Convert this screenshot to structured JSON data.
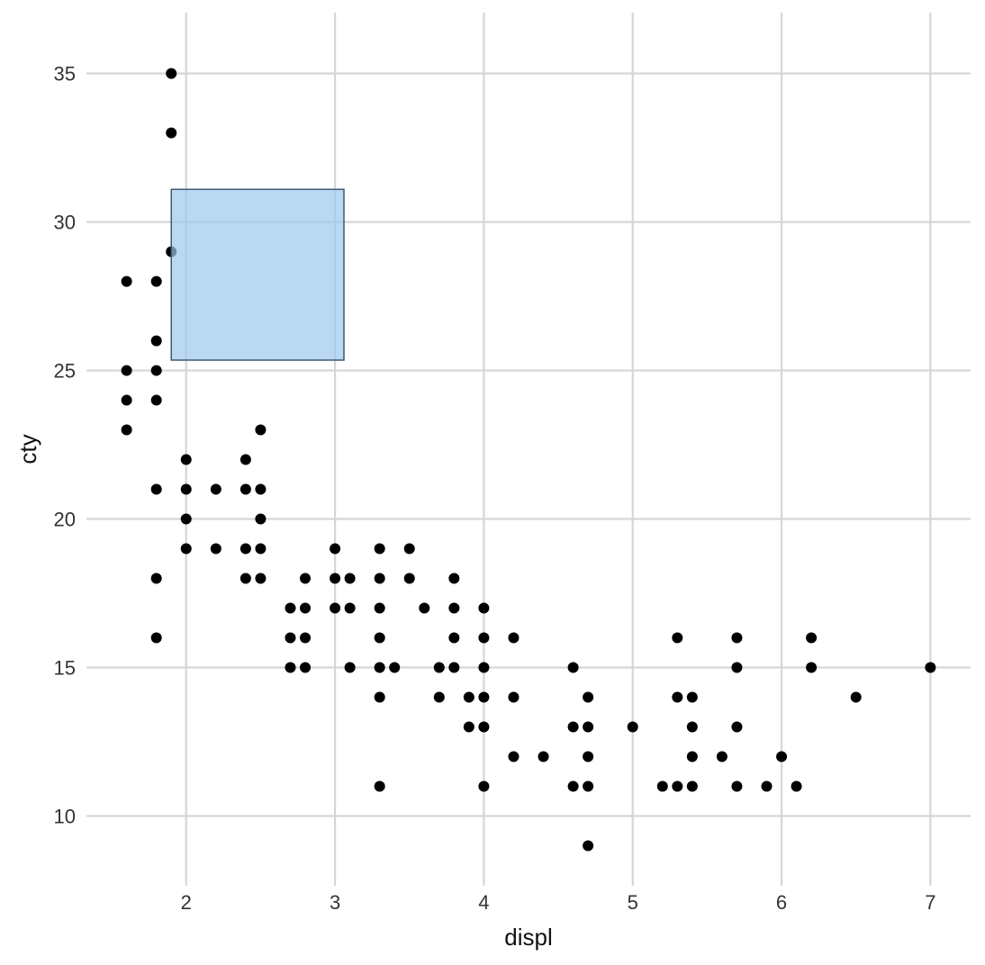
{
  "chart_data": {
    "type": "scatter",
    "xlabel": "displ",
    "ylabel": "cty",
    "xlim": [
      1.33,
      7.27
    ],
    "ylim": [
      7.65,
      37.05
    ],
    "x_ticks": [
      2,
      3,
      4,
      5,
      6,
      7
    ],
    "y_ticks": [
      10,
      15,
      20,
      25,
      30,
      35
    ],
    "grid": true,
    "brush_selection": {
      "x": [
        1.9,
        3.06
      ],
      "y": [
        25.35,
        31.1
      ]
    },
    "colors": {
      "points": "#000000",
      "grid": "#d6d6d6",
      "brush_fill": "#9ec8ec",
      "brush_stroke": "#3d5a78"
    },
    "points": [
      [
        1.9,
        35
      ],
      [
        1.9,
        33
      ],
      [
        1.9,
        29
      ],
      [
        1.6,
        28
      ],
      [
        1.8,
        28
      ],
      [
        1.8,
        26
      ],
      [
        1.6,
        25
      ],
      [
        1.8,
        25
      ],
      [
        1.6,
        24
      ],
      [
        1.8,
        24
      ],
      [
        1.6,
        23
      ],
      [
        2.5,
        23
      ],
      [
        2.0,
        22
      ],
      [
        2.4,
        22
      ],
      [
        1.8,
        21
      ],
      [
        2.0,
        21
      ],
      [
        2.2,
        21
      ],
      [
        2.4,
        21
      ],
      [
        2.5,
        21
      ],
      [
        2.0,
        20
      ],
      [
        2.5,
        20
      ],
      [
        2.0,
        19
      ],
      [
        2.2,
        19
      ],
      [
        2.4,
        19
      ],
      [
        2.5,
        19
      ],
      [
        3.0,
        19
      ],
      [
        3.3,
        19
      ],
      [
        3.5,
        19
      ],
      [
        1.8,
        18
      ],
      [
        2.4,
        18
      ],
      [
        2.5,
        18
      ],
      [
        2.8,
        18
      ],
      [
        3.0,
        18
      ],
      [
        3.1,
        18
      ],
      [
        3.3,
        18
      ],
      [
        3.5,
        18
      ],
      [
        3.8,
        18
      ],
      [
        2.7,
        17
      ],
      [
        2.8,
        17
      ],
      [
        3.0,
        17
      ],
      [
        3.1,
        17
      ],
      [
        3.3,
        17
      ],
      [
        3.6,
        17
      ],
      [
        3.8,
        17
      ],
      [
        4.0,
        17
      ],
      [
        1.8,
        16
      ],
      [
        2.7,
        16
      ],
      [
        2.8,
        16
      ],
      [
        3.3,
        16
      ],
      [
        3.8,
        16
      ],
      [
        4.0,
        16
      ],
      [
        4.2,
        16
      ],
      [
        5.3,
        16
      ],
      [
        5.7,
        16
      ],
      [
        6.2,
        16
      ],
      [
        2.7,
        15
      ],
      [
        2.8,
        15
      ],
      [
        3.1,
        15
      ],
      [
        3.3,
        15
      ],
      [
        3.4,
        15
      ],
      [
        3.7,
        15
      ],
      [
        3.8,
        15
      ],
      [
        4.0,
        15
      ],
      [
        4.6,
        15
      ],
      [
        5.7,
        15
      ],
      [
        6.2,
        15
      ],
      [
        7.0,
        15
      ],
      [
        3.3,
        14
      ],
      [
        3.7,
        14
      ],
      [
        3.9,
        14
      ],
      [
        4.0,
        14
      ],
      [
        4.2,
        14
      ],
      [
        4.7,
        14
      ],
      [
        5.3,
        14
      ],
      [
        5.4,
        14
      ],
      [
        6.5,
        14
      ],
      [
        3.9,
        13
      ],
      [
        4.0,
        13
      ],
      [
        4.6,
        13
      ],
      [
        4.7,
        13
      ],
      [
        5.0,
        13
      ],
      [
        5.4,
        13
      ],
      [
        5.7,
        13
      ],
      [
        4.2,
        12
      ],
      [
        4.4,
        12
      ],
      [
        4.7,
        12
      ],
      [
        5.4,
        12
      ],
      [
        5.6,
        12
      ],
      [
        6.0,
        12
      ],
      [
        3.3,
        11
      ],
      [
        4.0,
        11
      ],
      [
        4.6,
        11
      ],
      [
        4.7,
        11
      ],
      [
        5.2,
        11
      ],
      [
        5.3,
        11
      ],
      [
        5.4,
        11
      ],
      [
        5.7,
        11
      ],
      [
        5.9,
        11
      ],
      [
        6.1,
        11
      ],
      [
        4.7,
        9
      ]
    ]
  }
}
